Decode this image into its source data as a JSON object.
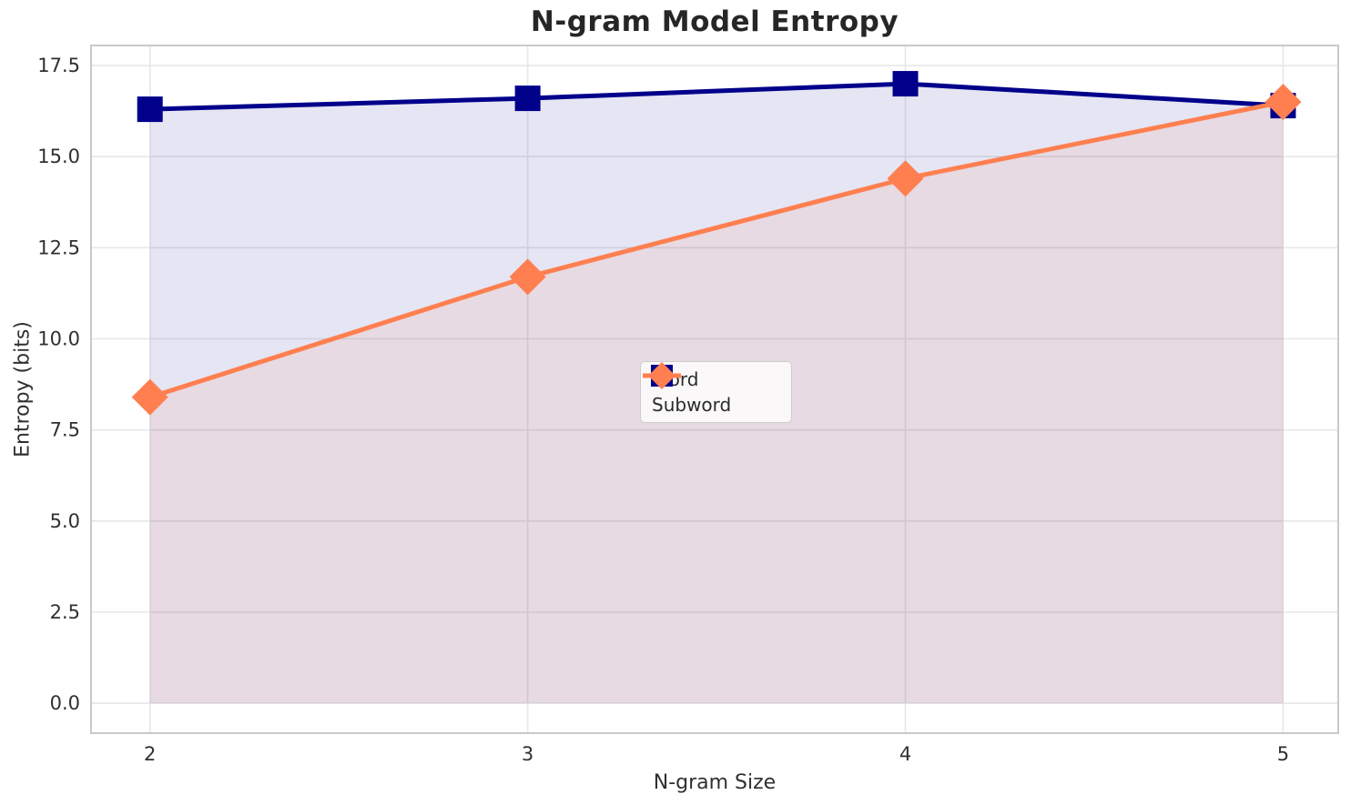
{
  "figure": {
    "background": "#ffffff",
    "title_color": "#262626",
    "text_color": "#303030"
  },
  "chart_data": {
    "type": "line",
    "title": "N-gram Model Entropy",
    "xlabel": "N-gram Size",
    "ylabel": "Entropy (bits)",
    "x": [
      2,
      3,
      4,
      5
    ],
    "series": [
      {
        "name": "Word",
        "values": [
          16.3,
          16.6,
          17.0,
          16.4
        ],
        "color": "#00008B",
        "marker": "square",
        "fill_to_zero": true
      },
      {
        "name": "Subword",
        "values": [
          8.4,
          11.7,
          14.4,
          16.5
        ],
        "color": "#FF7F50",
        "marker": "diamond",
        "fill_to_zero": true
      }
    ],
    "xticks": [
      2,
      3,
      4,
      5
    ],
    "yticks": [
      0.0,
      2.5,
      5.0,
      7.5,
      10.0,
      12.5,
      15.0,
      17.5
    ],
    "xlim": [
      1.844,
      5.146
    ],
    "ylim": [
      -0.82,
      18.05
    ],
    "grid": true,
    "grid_color": "#e7e7e7",
    "spine_color": "#c9c9c9",
    "tick_label_color": "#303030",
    "fill_alpha": 0.1,
    "line_width": 5,
    "legend": {
      "position": "center",
      "labels": [
        "Word",
        "Subword"
      ]
    }
  }
}
